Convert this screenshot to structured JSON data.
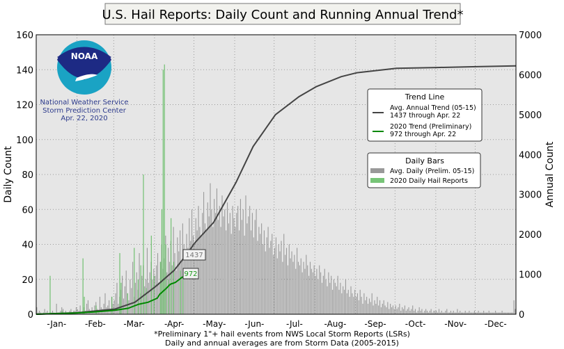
{
  "chart_data": {
    "type": "bar+line",
    "title": "U.S. Hail Reports: Daily Count and Running Annual Trend*",
    "ylabel": "Daily Count",
    "y2label": "Annual Count",
    "ylim": [
      0,
      160
    ],
    "y2lim": [
      0,
      7000
    ],
    "yticks": [
      "0",
      "20",
      "40",
      "60",
      "80",
      "100",
      "120",
      "140",
      "160"
    ],
    "y2ticks": [
      "0",
      "1000",
      "2000",
      "3000",
      "4000",
      "5000",
      "6000",
      "7000"
    ],
    "months": [
      "-Jan-",
      "-Feb-",
      "-Mar-",
      "-Apr-",
      "-May-",
      "-Jun-",
      "-Jul-",
      "-Aug-",
      "-Sep-",
      "-Oct-",
      "-Nov-",
      "-Dec-"
    ],
    "grid": true,
    "footnote": [
      "*Preliminary 1\"+ hail events from NWS Local Storm Reports (LSRs)",
      "Daily and annual averages are from Storm Data (2005-2015)"
    ],
    "logo": {
      "text": "NOAA",
      "lines": [
        "National Weather Service",
        "Storm Prediction Center",
        "Apr. 22, 2020"
      ]
    },
    "legend_trend": {
      "title": "Trend Line",
      "items": [
        {
          "line1": "Avg. Annual Trend (05-15)",
          "line2": "1437 through Apr. 22",
          "color": "#444444"
        },
        {
          "line1": "2020 Trend (Preliminary)",
          "line2": "972 through Apr. 22",
          "color": "#008800"
        }
      ]
    },
    "legend_bars": {
      "title": "Daily Bars",
      "items": [
        {
          "label": "Avg. Daily (Prelim. 05-15)",
          "color": "#999999"
        },
        {
          "label": "2020 Daily Hail Reports",
          "color": "#77c477"
        }
      ]
    },
    "annotations": {
      "avg_value": "1437",
      "current_value": "972",
      "current_day": 113
    },
    "avg_daily": [
      4,
      1,
      2,
      1,
      0,
      1,
      3,
      1,
      2,
      0,
      1,
      1,
      2,
      1,
      0,
      6,
      1,
      1,
      2,
      4,
      3,
      1,
      2,
      1,
      1,
      2,
      3,
      1,
      2,
      2,
      4,
      3,
      2,
      5,
      1,
      2,
      4,
      2,
      6,
      8,
      3,
      2,
      4,
      2,
      5,
      7,
      3,
      2,
      10,
      4,
      3,
      6,
      12,
      4,
      5,
      8,
      3,
      10,
      6,
      8,
      12,
      18,
      6,
      10,
      14,
      22,
      9,
      16,
      25,
      12,
      8,
      20,
      15,
      30,
      10,
      18,
      24,
      14,
      35,
      12,
      22,
      28,
      16,
      20,
      38,
      18,
      24,
      30,
      20,
      26,
      22,
      28,
      35,
      18,
      30,
      40,
      26,
      32,
      45,
      24,
      38,
      30,
      42,
      28,
      50,
      35,
      25,
      44,
      36,
      48,
      30,
      52,
      40,
      34,
      46,
      38,
      55,
      42,
      60,
      45,
      40,
      55,
      48,
      62,
      50,
      45,
      58,
      70,
      52,
      48,
      64,
      56,
      75,
      60,
      50,
      66,
      58,
      72,
      54,
      62,
      50,
      68,
      56,
      60,
      48,
      64,
      52,
      58,
      46,
      62,
      55,
      50,
      58,
      62,
      48,
      66,
      54,
      60,
      45,
      68,
      52,
      56,
      62,
      48,
      58,
      44,
      54,
      60,
      42,
      50,
      46,
      52,
      40,
      48,
      36,
      44,
      50,
      38,
      42,
      46,
      34,
      38,
      44,
      32,
      40,
      36,
      42,
      30,
      46,
      34,
      38,
      28,
      40,
      32,
      36,
      30,
      34,
      26,
      38,
      30,
      28,
      32,
      24,
      30,
      26,
      34,
      28,
      22,
      30,
      26,
      24,
      28,
      22,
      26,
      20,
      28,
      24,
      18,
      22,
      26,
      20,
      16,
      24,
      18,
      22,
      14,
      20,
      18,
      16,
      22,
      14,
      18,
      12,
      16,
      14,
      20,
      12,
      14,
      10,
      16,
      12,
      10,
      14,
      10,
      12,
      8,
      14,
      10,
      6,
      12,
      8,
      10,
      6,
      9,
      7,
      12,
      5,
      8,
      6,
      10,
      5,
      8,
      4,
      6,
      8,
      5,
      4,
      7,
      3,
      6,
      4,
      5,
      3,
      5,
      3,
      4,
      6,
      2,
      4,
      3,
      5,
      2,
      3,
      4,
      2,
      3,
      5,
      2,
      3,
      1,
      2,
      4,
      2,
      3,
      1,
      2,
      3,
      2,
      1,
      2,
      3,
      1,
      2,
      2,
      2,
      1,
      3,
      1,
      2,
      1,
      1,
      2,
      3,
      1,
      1,
      2,
      1,
      2,
      1,
      1,
      3,
      1,
      2,
      1,
      1,
      1,
      2,
      1,
      1,
      2,
      1,
      1,
      1,
      2,
      1,
      1,
      2,
      1,
      1,
      1,
      2,
      1,
      1,
      1,
      2,
      1,
      1,
      1,
      1,
      2,
      1,
      1,
      1,
      1,
      2,
      1,
      1,
      1,
      1,
      1,
      1,
      1,
      1,
      8,
      3
    ],
    "daily_2020": [
      [
        11,
        22
      ],
      [
        20,
        2
      ],
      [
        36,
        32
      ],
      [
        37,
        10
      ],
      [
        46,
        5
      ],
      [
        58,
        10
      ],
      [
        64,
        35
      ],
      [
        65,
        18
      ],
      [
        70,
        12
      ],
      [
        75,
        38
      ],
      [
        78,
        20
      ],
      [
        80,
        28
      ],
      [
        82,
        80
      ],
      [
        84,
        15
      ],
      [
        88,
        45
      ],
      [
        90,
        22
      ],
      [
        95,
        30
      ],
      [
        96,
        60
      ],
      [
        97,
        140
      ],
      [
        98,
        143
      ],
      [
        99,
        40
      ],
      [
        101,
        20
      ],
      [
        103,
        55
      ],
      [
        105,
        30
      ],
      [
        110,
        25
      ],
      [
        112,
        20
      ]
    ],
    "avg_trend": [
      [
        0,
        0
      ],
      [
        32,
        40
      ],
      [
        60,
        130
      ],
      [
        75,
        300
      ],
      [
        91,
        700
      ],
      [
        105,
        1100
      ],
      [
        113,
        1437
      ],
      [
        121,
        1800
      ],
      [
        135,
        2300
      ],
      [
        152,
        3300
      ],
      [
        165,
        4200
      ],
      [
        182,
        5000
      ],
      [
        200,
        5450
      ],
      [
        213,
        5700
      ],
      [
        232,
        5950
      ],
      [
        244,
        6050
      ],
      [
        274,
        6160
      ],
      [
        305,
        6180
      ],
      [
        335,
        6200
      ],
      [
        365,
        6220
      ]
    ],
    "trend_2020": [
      [
        0,
        0
      ],
      [
        30,
        30
      ],
      [
        45,
        60
      ],
      [
        60,
        100
      ],
      [
        70,
        150
      ],
      [
        78,
        250
      ],
      [
        85,
        300
      ],
      [
        92,
        400
      ],
      [
        94,
        500
      ],
      [
        99,
        650
      ],
      [
        102,
        750
      ],
      [
        106,
        800
      ],
      [
        110,
        900
      ],
      [
        113,
        972
      ]
    ]
  }
}
